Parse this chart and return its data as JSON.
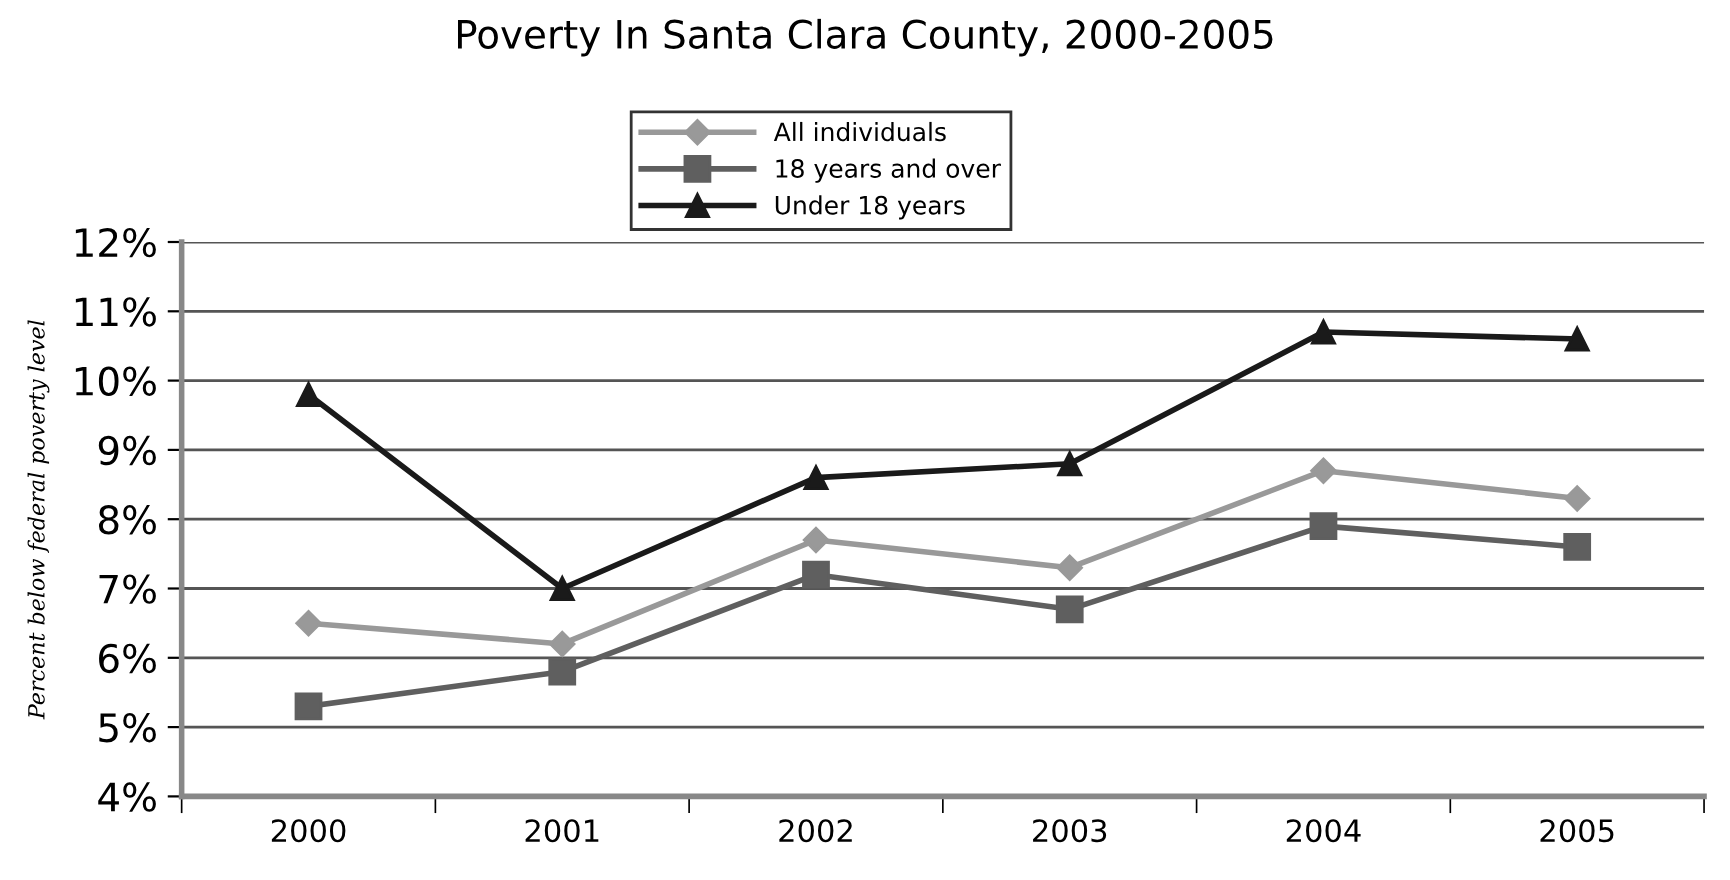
{
  "chart_data": {
    "type": "line",
    "title": "Poverty In Santa Clara County, 2000-2005",
    "ylabel": "Percent below federal poverty level",
    "categories": [
      "2000",
      "2001",
      "2002",
      "2003",
      "2004",
      "2005"
    ],
    "series": [
      {
        "name": "All individuals",
        "color": "#999999",
        "marker": "diamond",
        "values": [
          6.5,
          6.2,
          7.7,
          7.3,
          8.7,
          8.3
        ]
      },
      {
        "name": "18 years and over",
        "color": "#5f5f5f",
        "marker": "square",
        "values": [
          5.3,
          5.8,
          7.2,
          6.7,
          7.9,
          7.6
        ]
      },
      {
        "name": "Under 18 years",
        "color": "#1a1a1a",
        "marker": "triangle",
        "values": [
          9.8,
          7.0,
          8.6,
          8.8,
          10.7,
          10.6
        ]
      }
    ],
    "ylim": [
      4,
      12
    ],
    "yticks": [
      {
        "value": 4,
        "label": "4%"
      },
      {
        "value": 5,
        "label": "5%"
      },
      {
        "value": 6,
        "label": "6%"
      },
      {
        "value": 7,
        "label": "7%"
      },
      {
        "value": 8,
        "label": "8%"
      },
      {
        "value": 9,
        "label": "9%"
      },
      {
        "value": 10,
        "label": "10%"
      },
      {
        "value": 11,
        "label": "11%"
      },
      {
        "value": 12,
        "label": "12%"
      }
    ],
    "grid": "y",
    "legend": "top",
    "line_style": "solid"
  }
}
